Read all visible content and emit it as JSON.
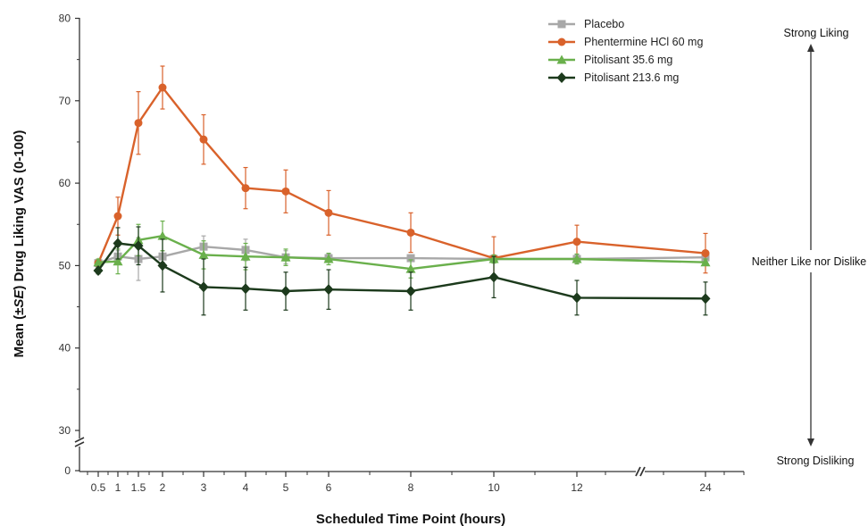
{
  "chart_data": {
    "type": "line",
    "title": "",
    "xlabel": "Scheduled Time Point (hours)",
    "ylabel_parts": [
      "Mean (±",
      "SE",
      ") Drug Liking VAS (0-100)"
    ],
    "x_ticks": [
      "0.5",
      "1",
      "1.5",
      "2",
      "3",
      "4",
      "5",
      "6",
      "8",
      "10",
      "12",
      "24"
    ],
    "y_ticks": [
      0,
      30,
      40,
      50,
      60,
      70,
      80
    ],
    "y_axis_break": [
      0,
      30
    ],
    "x_axis_break": [
      12,
      24
    ],
    "ylim": [
      0,
      80
    ],
    "grid": false,
    "legend_position": "top-right",
    "side_labels": {
      "top": "Strong Liking",
      "middle": "Neither Like nor Dislike",
      "bottom": "Strong Disliking"
    },
    "series": [
      {
        "name": "Placebo",
        "color": "#a8a8a8",
        "marker": "square",
        "values": [
          50.3,
          51.1,
          50.8,
          51.1,
          52.3,
          51.9,
          51.0,
          50.9,
          50.9,
          50.8,
          50.8,
          51.0
        ],
        "errors": [
          0.3,
          0.7,
          2.6,
          0.7,
          1.3,
          1.3,
          0.8,
          0.5,
          0.3,
          0.3,
          0.5,
          0.6
        ]
      },
      {
        "name": "Phentermine HCl 60 mg",
        "color": "#d9622b",
        "marker": "circle",
        "values": [
          50.3,
          56.0,
          67.3,
          71.6,
          65.3,
          59.4,
          59.0,
          56.4,
          54.0,
          50.9,
          52.9,
          51.5
        ],
        "errors": [
          0.3,
          2.3,
          3.8,
          2.6,
          3.0,
          2.5,
          2.6,
          2.7,
          2.4,
          2.6,
          2.0,
          2.4
        ]
      },
      {
        "name": "Pitolisant 35.6 mg",
        "color": "#6ab04c",
        "marker": "triangle",
        "values": [
          50.4,
          50.5,
          53.1,
          53.6,
          51.3,
          51.1,
          51.0,
          50.8,
          49.6,
          50.8,
          50.8,
          50.4
        ],
        "errors": [
          0.4,
          1.5,
          1.9,
          1.8,
          1.7,
          1.6,
          1.0,
          0.7,
          1.1,
          0.5,
          0.6,
          0.4
        ]
      },
      {
        "name": "Pitolisant 213.6 mg",
        "color": "#1c3a1c",
        "marker": "diamond",
        "values": [
          49.4,
          52.7,
          52.4,
          50.0,
          47.4,
          47.2,
          46.9,
          47.1,
          46.9,
          48.6,
          46.1,
          46.0
        ],
        "errors": [
          0.4,
          1.9,
          2.3,
          3.2,
          3.4,
          2.6,
          2.3,
          2.4,
          2.3,
          2.5,
          2.1,
          2.0
        ]
      }
    ]
  }
}
